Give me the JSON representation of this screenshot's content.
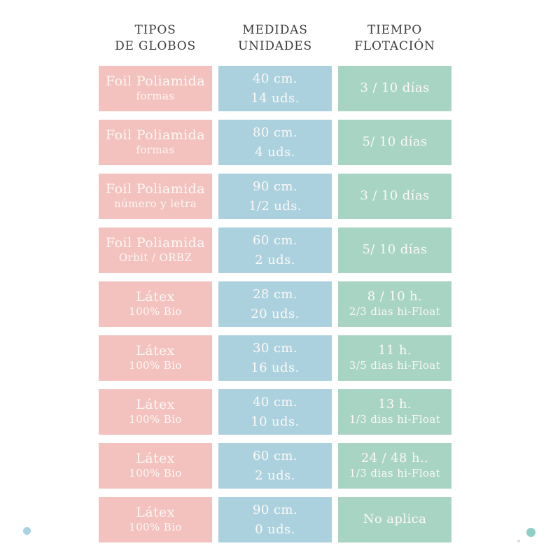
{
  "chart_data": {
    "type": "table",
    "columns": [
      {
        "id": "tipos",
        "line1": "TIPOS",
        "line2": "DE GLOBOS",
        "color": "#f3c2bf"
      },
      {
        "id": "medidas",
        "line1": "MEDIDAS",
        "line2": "UNIDADES",
        "color": "#abd1de"
      },
      {
        "id": "tiempo",
        "line1": "TIEMPO",
        "line2": "FLOTACIÓN",
        "color": "#a7d4c3"
      }
    ],
    "rows": [
      {
        "tipo": "Foil Poliamida",
        "tipo_sub": "formas",
        "medida": "40 cm.",
        "unidades": "14 uds.",
        "flotacion": "3 / 10 días",
        "flotacion_sub": ""
      },
      {
        "tipo": "Foil Poliamida",
        "tipo_sub": "formas",
        "medida": "80 cm.",
        "unidades": "4 uds.",
        "flotacion": "5/ 10 días",
        "flotacion_sub": ""
      },
      {
        "tipo": "Foil Poliamida",
        "tipo_sub": "número y letra",
        "medida": "90 cm.",
        "unidades": "1/2 uds.",
        "flotacion": "3 / 10 días",
        "flotacion_sub": ""
      },
      {
        "tipo": "Foil Poliamida",
        "tipo_sub": "Orbit / ORBZ",
        "medida": "60 cm.",
        "unidades": "2 uds.",
        "flotacion": "5/ 10 días",
        "flotacion_sub": ""
      },
      {
        "tipo": "Látex",
        "tipo_sub": "100% Bio",
        "medida": "28 cm.",
        "unidades": "20 uds.",
        "flotacion": "8 / 10 h.",
        "flotacion_sub": "2/3 dias hi-Float"
      },
      {
        "tipo": "Látex",
        "tipo_sub": "100% Bio",
        "medida": "30 cm.",
        "unidades": "16 uds.",
        "flotacion": "11 h.",
        "flotacion_sub": "3/5 dias hi-Float"
      },
      {
        "tipo": "Látex",
        "tipo_sub": "100% Bio",
        "medida": "40 cm.",
        "unidades": "10 uds.",
        "flotacion": "13 h.",
        "flotacion_sub": "1/3 dias hi-Float"
      },
      {
        "tipo": "Látex",
        "tipo_sub": "100% Bio",
        "medida": "60 cm.",
        "unidades": "2 uds.",
        "flotacion": "24 / 48 h..",
        "flotacion_sub": "1/3 dias hi-Float"
      },
      {
        "tipo": "Látex",
        "tipo_sub": "100% Bio",
        "medida": "90 cm.",
        "unidades": "0 uds.",
        "flotacion": "No aplica",
        "flotacion_sub": ""
      }
    ]
  },
  "colors": {
    "pink": "#f3c2bf",
    "blue": "#abd1de",
    "green": "#a7d4c3",
    "cell_text": "#fdf8f6",
    "header_text": "#3b3b3b",
    "dot_left": "#a9d2e3",
    "dot_right": "#8fcfc5",
    "speck": "#c9cfd6"
  }
}
